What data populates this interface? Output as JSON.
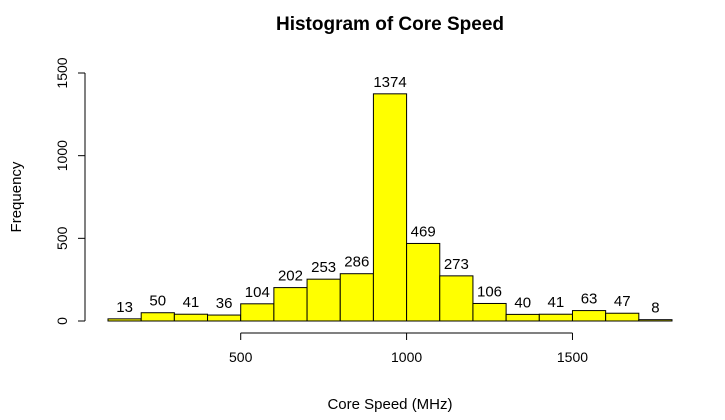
{
  "chart_data": {
    "type": "bar",
    "title": "Histogram of Core Speed",
    "xlabel": "Core Speed (MHz)",
    "ylabel": "Frequency",
    "xlim": [
      100,
      1800
    ],
    "ylim": [
      0,
      1500
    ],
    "bin_width": 100,
    "bin_start": 100,
    "x_ticks": [
      500,
      1000,
      1500
    ],
    "y_ticks": [
      0,
      500,
      1000,
      1500
    ],
    "values": [
      13,
      50,
      41,
      36,
      104,
      202,
      253,
      286,
      1374,
      469,
      273,
      106,
      40,
      41,
      63,
      47,
      8
    ],
    "bar_color": "#ffff00",
    "bar_border_color": "#000000",
    "grid": false,
    "legend": "none"
  }
}
